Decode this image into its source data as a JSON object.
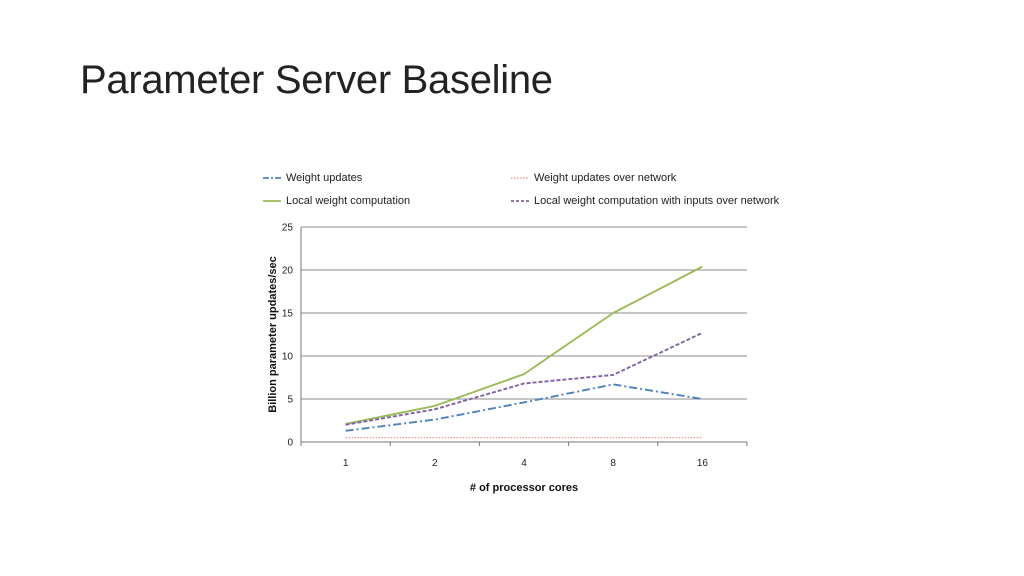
{
  "slide": {
    "title": "Parameter Server Baseline"
  },
  "chart_data": {
    "type": "line",
    "title": "",
    "xlabel": "# of processor cores",
    "ylabel": "Billion parameter updates/sec",
    "categories": [
      "1",
      "2",
      "4",
      "8",
      "16"
    ],
    "ylim": [
      0,
      25
    ],
    "yticks": [
      0,
      5,
      10,
      15,
      20,
      25
    ],
    "grid": true,
    "legend_position": "top",
    "series": [
      {
        "name": "Weight updates",
        "values": [
          1.3,
          2.6,
          4.6,
          6.7,
          5.0
        ],
        "color": "#4f81bd",
        "dash": "dash-dot"
      },
      {
        "name": "Weight updates over network",
        "values": [
          0.5,
          0.5,
          0.5,
          0.5,
          0.5
        ],
        "color": "#e8a0a0",
        "dash": "dot"
      },
      {
        "name": "Local weight computation",
        "values": [
          2.1,
          4.2,
          7.9,
          15.0,
          20.4
        ],
        "color": "#9bbb59",
        "dash": "solid"
      },
      {
        "name": "Local weight computation with inputs over network",
        "values": [
          2.0,
          3.8,
          6.8,
          7.8,
          12.7
        ],
        "color": "#8064a2",
        "dash": "dash"
      }
    ]
  }
}
